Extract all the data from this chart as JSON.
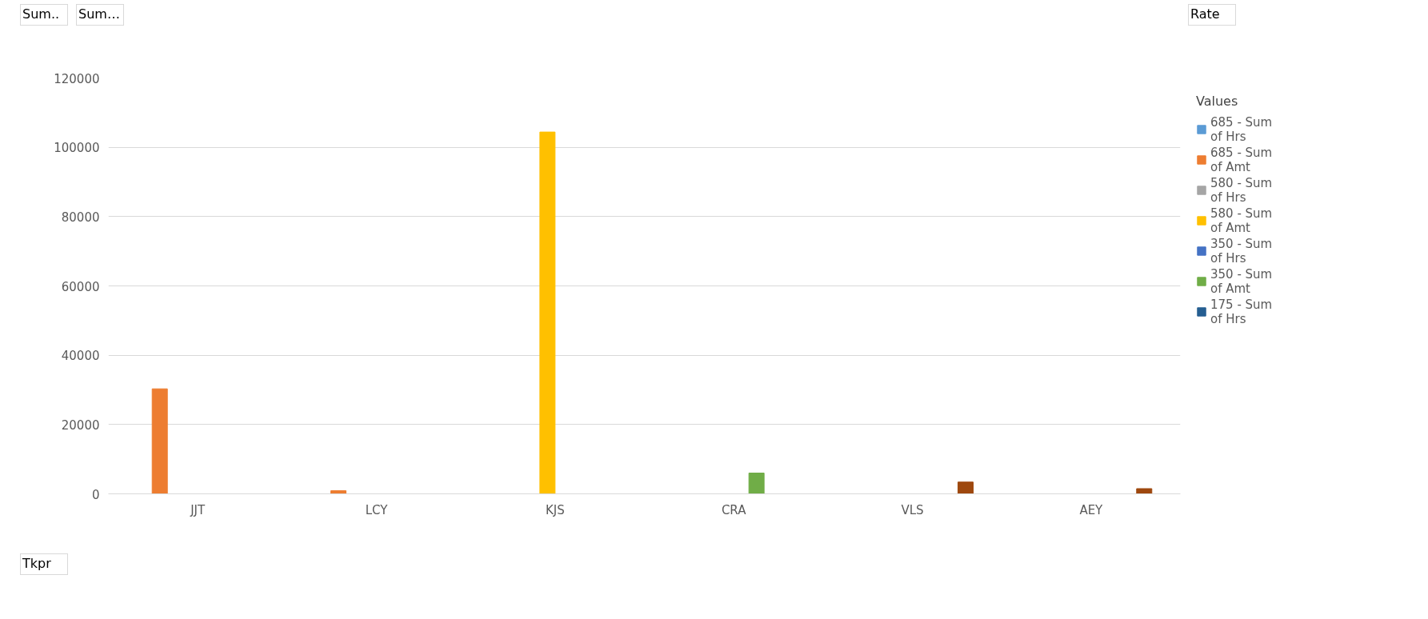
{
  "chart_data": {
    "type": "bar",
    "categories": [
      "JJT",
      "LCY",
      "KJS",
      "CRA",
      "VLS",
      "AEY"
    ],
    "series": [
      {
        "name": "685 - Sum of Hrs",
        "color": "#5b9bd5",
        "values": [
          null,
          null,
          null,
          null,
          null,
          null
        ]
      },
      {
        "name": "685 - Sum of Amt",
        "color": "#ed7d31",
        "values": [
          30300,
          900,
          null,
          null,
          null,
          null
        ]
      },
      {
        "name": "580 - Sum of Hrs",
        "color": "#a5a5a5",
        "values": [
          null,
          null,
          null,
          null,
          null,
          null
        ]
      },
      {
        "name": "580 - Sum of Amt",
        "color": "#ffc000",
        "values": [
          null,
          null,
          104400,
          null,
          null,
          null
        ]
      },
      {
        "name": "350 - Sum of Hrs",
        "color": "#4472c4",
        "values": [
          null,
          null,
          null,
          null,
          null,
          null
        ]
      },
      {
        "name": "350 - Sum of Amt",
        "color": "#70ad47",
        "values": [
          null,
          null,
          null,
          6000,
          null,
          null
        ]
      },
      {
        "name": "175 - Sum of Hrs",
        "color": "#255e91",
        "values": [
          null,
          null,
          null,
          null,
          null,
          null
        ]
      },
      {
        "color": "#9e480e",
        "values": [
          null,
          null,
          null,
          null,
          3400,
          1500
        ]
      }
    ],
    "ylim": [
      0,
      120000
    ],
    "yticks": [
      0,
      20000,
      40000,
      60000,
      80000,
      100000,
      120000
    ],
    "grid": "y",
    "legend": "right",
    "legend_title": "Values",
    "annotations": [
      "Sum..",
      "Sum…",
      "Rate",
      "Tkpr"
    ]
  }
}
